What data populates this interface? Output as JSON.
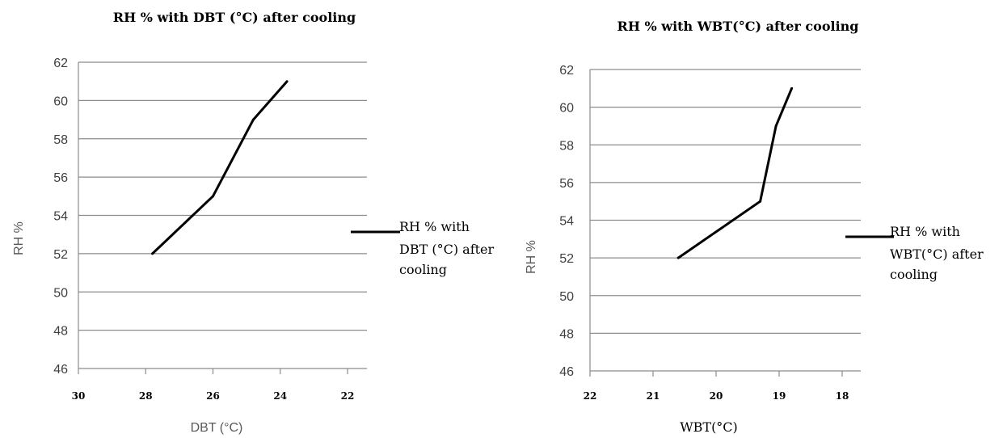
{
  "chart_data": [
    {
      "type": "line",
      "title": "RH % with DBT (°C) after cooling",
      "xlabel": "DBT (°C)",
      "ylabel": "RH %",
      "xlim": [
        30,
        22
      ],
      "x_reversed": true,
      "ylim": [
        46,
        62
      ],
      "x_ticks": [
        "30",
        "28",
        "26",
        "24",
        "22"
      ],
      "y_ticks": [
        "46",
        "48",
        "50",
        "52",
        "54",
        "56",
        "58",
        "60",
        "62"
      ],
      "grid": true,
      "legend_position": "right",
      "series": [
        {
          "name": "RH % with DBT (°C) after cooling",
          "legend_lines": [
            "RH % with",
            "DBT (°C) after",
            "cooling"
          ],
          "x": [
            27.8,
            26,
            24.8,
            23.8
          ],
          "y": [
            52,
            55,
            59,
            61
          ]
        }
      ]
    },
    {
      "type": "line",
      "title": "RH % with WBT(°C) after cooling",
      "xlabel": "WBT(°C)",
      "ylabel": "RH %",
      "xlim": [
        22,
        18
      ],
      "x_reversed": true,
      "ylim": [
        46,
        62
      ],
      "x_ticks": [
        "22",
        "21",
        "20",
        "19",
        "18"
      ],
      "y_ticks": [
        "46",
        "48",
        "50",
        "52",
        "54",
        "56",
        "58",
        "60",
        "62"
      ],
      "grid": true,
      "legend_position": "right",
      "series": [
        {
          "name": "RH % with WBT(°C) after cooling",
          "legend_lines": [
            "RH % with",
            "WBT(°C) after",
            "cooling"
          ],
          "x": [
            20.6,
            19.3,
            19.05,
            18.8
          ],
          "y": [
            52,
            55,
            59,
            61
          ]
        }
      ]
    }
  ]
}
